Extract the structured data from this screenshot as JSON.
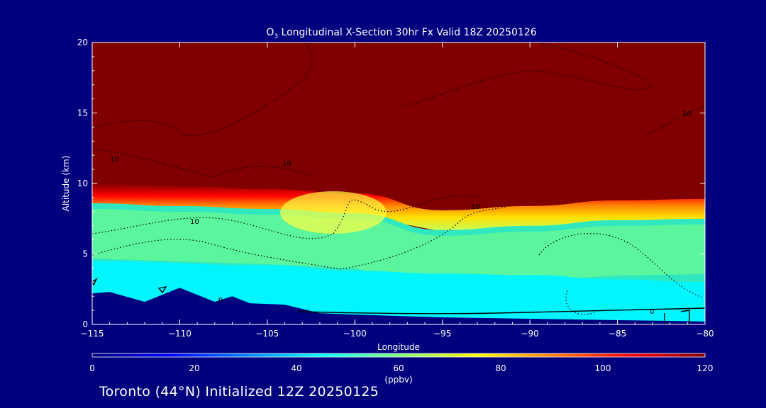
{
  "chart_data": {
    "type": "heatmap",
    "title": "O₃ Longitudinal X-Section 30hr  Fx Valid 18Z 20250126",
    "title_parts": {
      "pre": "O",
      "sub": "3",
      "post": " Longitudinal X-Section 30hr  Fx Valid 18Z 20250126"
    },
    "xlabel": "Longitude",
    "ylabel": "Altitude (km)",
    "xlim": [
      -115,
      -80
    ],
    "ylim": [
      0,
      20
    ],
    "x_ticks": [
      -115,
      -110,
      -105,
      -100,
      -95,
      -90,
      -85,
      -80
    ],
    "x_tick_labels": [
      "−115",
      "−110",
      "−105",
      "−100",
      "−95",
      "−90",
      "−85",
      "−80"
    ],
    "y_ticks": [
      0,
      5,
      10,
      15,
      20
    ],
    "y_tick_labels": [
      "0",
      "5",
      "10",
      "15",
      "20"
    ],
    "variable": "O3 concentration",
    "colorbar": {
      "range": [
        0,
        120
      ],
      "ticks": [
        0,
        20,
        40,
        60,
        80,
        100,
        120
      ],
      "tick_labels": [
        "0",
        "20",
        "40",
        "60",
        "80",
        "100",
        "120"
      ],
      "unit_label": "(ppbv)",
      "stops": [
        "#00007f",
        "#0000ff",
        "#0080ff",
        "#00ffff",
        "#80ff80",
        "#ffff00",
        "#ff8000",
        "#ff0000",
        "#800000"
      ]
    },
    "approx_values_by_altitude_km": [
      {
        "altitude": 1,
        "o3": 45
      },
      {
        "altitude": 2,
        "o3": 48
      },
      {
        "altitude": 4,
        "o3": 50
      },
      {
        "altitude": 6,
        "o3": 55
      },
      {
        "altitude": 8,
        "o3": 62
      },
      {
        "altitude": 10,
        "o3": 120
      },
      {
        "altitude": 15,
        "o3": 120
      },
      {
        "altitude": 20,
        "o3": 120
      }
    ],
    "tropopause_km": [
      {
        "lon": -115,
        "alt": 10.2
      },
      {
        "lon": -110,
        "alt": 10.0
      },
      {
        "lon": -105,
        "alt": 9.8
      },
      {
        "lon": -100,
        "alt": 9.5
      },
      {
        "lon": -95,
        "alt": 8.3
      },
      {
        "lon": -90,
        "alt": 8.6
      },
      {
        "lon": -85,
        "alt": 9.0
      },
      {
        "lon": -80,
        "alt": 9.1
      }
    ],
    "terrain_km": [
      {
        "lon": -115,
        "alt": 2.2
      },
      {
        "lon": -114,
        "alt": 2.3
      },
      {
        "lon": -112,
        "alt": 1.6
      },
      {
        "lon": -110,
        "alt": 2.6
      },
      {
        "lon": -108,
        "alt": 1.6
      },
      {
        "lon": -107,
        "alt": 2.0
      },
      {
        "lon": -106,
        "alt": 1.5
      },
      {
        "lon": -104,
        "alt": 1.4
      },
      {
        "lon": -102,
        "alt": 0.8
      },
      {
        "lon": -100,
        "alt": 0.7
      },
      {
        "lon": -95,
        "alt": 0.5
      },
      {
        "lon": -90,
        "alt": 0.4
      },
      {
        "lon": -85,
        "alt": 0.3
      },
      {
        "lon": -82,
        "alt": 0.25
      },
      {
        "lon": -80,
        "alt": 0.2
      }
    ],
    "contour_labels": [
      "10",
      "10",
      "10",
      "10",
      "10",
      "0",
      "0"
    ],
    "footer": "Toronto (44°N) Initialized 12Z 20250125"
  }
}
